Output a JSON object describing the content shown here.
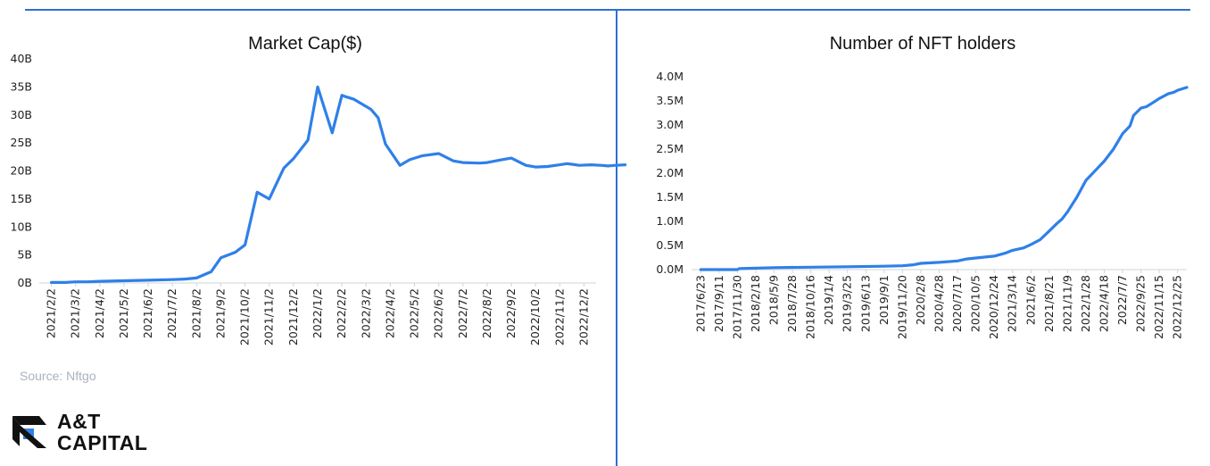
{
  "source": "Source: Nftgo",
  "logo": {
    "line1": "A&T",
    "line2": "CAPITAL",
    "icon": "at-capital-logo-icon"
  },
  "colors": {
    "line": "#2f80e8",
    "rule": "#2f6fd6",
    "axis": "#cfd4da"
  },
  "chart_data": [
    {
      "type": "line",
      "title": "Market Cap($)",
      "xlabel": "",
      "ylabel": "",
      "ylim": [
        0,
        40
      ],
      "yticks": [
        0,
        5,
        10,
        15,
        20,
        25,
        30,
        35,
        40
      ],
      "ytick_labels": [
        "0B",
        "5B",
        "10B",
        "15B",
        "20B",
        "25B",
        "30B",
        "35B",
        "40B"
      ],
      "xtick_labels": [
        "2021/2/2",
        "2021/3/2",
        "2021/4/2",
        "2021/5/2",
        "2021/6/2",
        "2021/7/2",
        "2021/8/2",
        "2021/9/2",
        "2021/10/2",
        "2021/11/2",
        "2021/12/2",
        "2022/1/2",
        "2022/2/2",
        "2022/3/2",
        "2022/4/2",
        "2022/5/2",
        "2022/6/2",
        "2022/7/2",
        "2022/8/2",
        "2022/9/2",
        "2022/10/2",
        "2022/11/2",
        "2022/12/2"
      ],
      "grid": false,
      "series": [
        {
          "x": [
            0,
            0.6,
            1,
            1.5,
            2,
            3,
            4,
            5,
            5.5,
            6,
            6.6,
            7,
            7.6,
            8,
            8.5,
            9,
            9.6,
            10,
            10.6,
            11,
            11.6,
            12,
            12.2,
            12.5,
            13.2,
            13.5,
            13.8,
            14.4,
            14.8,
            15.3,
            16,
            16.6,
            17,
            17.7,
            18,
            18.6,
            19,
            19.6,
            20,
            20.5,
            21,
            21.3,
            21.5,
            21.8,
            22.3,
            22.7,
            23,
            23.3,
            23.7
          ],
          "values": [
            0.1,
            0.1,
            0.2,
            0.2,
            0.3,
            0.4,
            0.5,
            0.6,
            0.7,
            0.9,
            2.0,
            4.5,
            5.5,
            6.8,
            16.2,
            15.0,
            20.5,
            22.2,
            25.5,
            35.0,
            26.8,
            33.5,
            33.2,
            32.8,
            31.0,
            29.5,
            24.8,
            21.0,
            22.0,
            22.7,
            23.1,
            21.8,
            21.5,
            21.4,
            21.5,
            22.0,
            22.3,
            21.0,
            20.7,
            20.8,
            21.1,
            21.3,
            21.2,
            21.0,
            21.1,
            21.0,
            20.9,
            21.0,
            21.1
          ]
        }
      ]
    },
    {
      "type": "line",
      "title": "Number of NFT holders",
      "xlabel": "",
      "ylabel": "",
      "ylim": [
        0,
        4.0
      ],
      "yticks": [
        0,
        0.5,
        1.0,
        1.5,
        2.0,
        2.5,
        3.0,
        3.5,
        4.0
      ],
      "ytick_labels": [
        "0.0M",
        "0.5M",
        "1.0M",
        "1.5M",
        "2.0M",
        "2.5M",
        "3.0M",
        "3.5M",
        "4.0M"
      ],
      "xtick_labels": [
        "2017/6/23",
        "2017/9/11",
        "2017/11/30",
        "2018/2/18",
        "2018/5/9",
        "2018/7/28",
        "2018/10/16",
        "2019/1/4",
        "2019/3/25",
        "2019/6/13",
        "2019/9/1",
        "2019/11/20",
        "2020/2/8",
        "2020/4/28",
        "2020/7/17",
        "2020/10/5",
        "2020/12/24",
        "2021/3/14",
        "2021/6/2",
        "2021/8/21",
        "2021/11/9",
        "2022/1/28",
        "2022/4/18",
        "2022/7/7",
        "2022/9/25",
        "2022/11/15",
        "2022/12/25"
      ],
      "grid": false,
      "series": [
        {
          "x": [
            0,
            2,
            2.1,
            4,
            6,
            8,
            10,
            11,
            11.6,
            12,
            13,
            14,
            14.5,
            15,
            16,
            16.6,
            17,
            17.6,
            18,
            18.5,
            19,
            19.4,
            19.7,
            20,
            20.5,
            21,
            21.5,
            22,
            22.5,
            23,
            23.4,
            23.6,
            24,
            24.3,
            24.6,
            25,
            25.5,
            25.8,
            26,
            26.5
          ],
          "values": [
            0,
            0,
            0.02,
            0.04,
            0.05,
            0.06,
            0.07,
            0.08,
            0.1,
            0.13,
            0.15,
            0.18,
            0.22,
            0.24,
            0.28,
            0.34,
            0.4,
            0.45,
            0.52,
            0.62,
            0.8,
            0.95,
            1.05,
            1.2,
            1.5,
            1.85,
            2.05,
            2.25,
            2.5,
            2.82,
            2.98,
            3.2,
            3.35,
            3.38,
            3.45,
            3.55,
            3.65,
            3.68,
            3.72,
            3.78
          ]
        }
      ]
    }
  ]
}
